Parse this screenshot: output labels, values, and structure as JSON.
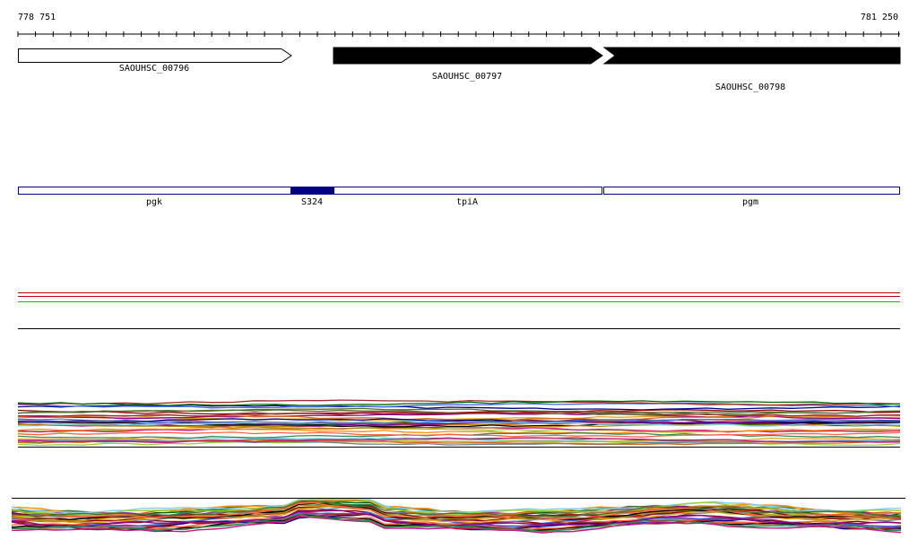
{
  "ruler": {
    "start_label": "778 751",
    "end_label": "781 250",
    "start": 778751,
    "end": 781250
  },
  "genes": [
    {
      "id": "SAOUHSC_00796",
      "style": "open",
      "strand": "+"
    },
    {
      "id": "SAOUHSC_00797",
      "style": "filled",
      "strand": "+"
    },
    {
      "id": "SAOUHSC_00798",
      "style": "filled",
      "strand": "+"
    }
  ],
  "annotations": [
    {
      "label": "pgk",
      "highlighted": false
    },
    {
      "label": "S324",
      "highlighted": true
    },
    {
      "label": "tpiA",
      "highlighted": false
    },
    {
      "label": "pgm",
      "highlighted": false
    }
  ],
  "colors": {
    "feature_outline": "#000080",
    "feature_fill_highlight": "#000080",
    "gene_filled": "#000000",
    "line_red": "#c00000",
    "line_green": "#00c000",
    "trace_palette": [
      "#8b0000",
      "#2e8b57",
      "#9acd32",
      "#00008b",
      "#ff6347",
      "#daa520",
      "#4169e1",
      "#8b008b",
      "#a52a2a",
      "#556b2f",
      "#d2691e",
      "#708090",
      "#b8860b",
      "#006400",
      "#c71585",
      "#87ceeb",
      "#ff8c00",
      "#000000"
    ]
  }
}
